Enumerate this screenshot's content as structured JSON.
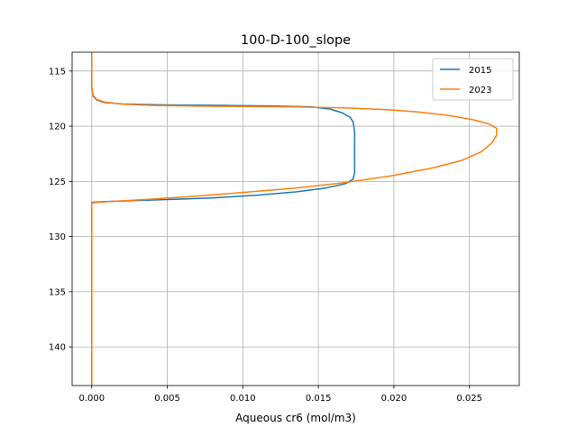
{
  "chart_data": {
    "type": "line",
    "title": "100-D-100_slope",
    "xlabel": "Aqueous cr6 (mol/m3)",
    "ylabel": "",
    "xlim": [
      -0.0013,
      0.0283
    ],
    "ylim": [
      143.5,
      113.3
    ],
    "y_inverted": true,
    "grid": true,
    "legend_position": "top-right",
    "x_ticks": [
      0.0,
      0.005,
      0.01,
      0.015,
      0.02,
      0.025
    ],
    "x_tick_labels": [
      "0.000",
      "0.005",
      "0.010",
      "0.015",
      "0.020",
      "0.025"
    ],
    "y_ticks": [
      115,
      120,
      125,
      130,
      135,
      140
    ],
    "y_tick_labels": [
      "115",
      "120",
      "125",
      "130",
      "135",
      "140"
    ],
    "series": [
      {
        "name": "2015",
        "color": "#1f77b4",
        "points": [
          [
            0.0,
            113.3
          ],
          [
            0.0,
            116.5
          ],
          [
            0.0001,
            117.3
          ],
          [
            0.0003,
            117.6
          ],
          [
            0.0008,
            117.85
          ],
          [
            0.002,
            117.98
          ],
          [
            0.005,
            118.07
          ],
          [
            0.009,
            118.12
          ],
          [
            0.012,
            118.17
          ],
          [
            0.0145,
            118.25
          ],
          [
            0.0158,
            118.45
          ],
          [
            0.0166,
            118.8
          ],
          [
            0.0171,
            119.2
          ],
          [
            0.0173,
            119.6
          ],
          [
            0.0174,
            120.5
          ],
          [
            0.0174,
            122.5
          ],
          [
            0.0174,
            124.2
          ],
          [
            0.0173,
            124.8
          ],
          [
            0.0168,
            125.2
          ],
          [
            0.0155,
            125.6
          ],
          [
            0.0135,
            125.95
          ],
          [
            0.011,
            126.25
          ],
          [
            0.008,
            126.5
          ],
          [
            0.005,
            126.65
          ],
          [
            0.002,
            126.78
          ],
          [
            0.0005,
            126.85
          ],
          [
            0.0,
            126.9
          ],
          [
            0.0,
            135.0
          ],
          [
            0.0,
            143.5
          ]
        ]
      },
      {
        "name": "2023",
        "color": "#ff7f0e",
        "points": [
          [
            0.0,
            113.3
          ],
          [
            0.0,
            116.5
          ],
          [
            0.0001,
            117.2
          ],
          [
            0.0003,
            117.55
          ],
          [
            0.0008,
            117.8
          ],
          [
            0.002,
            118.0
          ],
          [
            0.004,
            118.12
          ],
          [
            0.008,
            118.2
          ],
          [
            0.013,
            118.25
          ],
          [
            0.017,
            118.35
          ],
          [
            0.0195,
            118.5
          ],
          [
            0.0215,
            118.7
          ],
          [
            0.0235,
            119.0
          ],
          [
            0.0252,
            119.4
          ],
          [
            0.0263,
            119.8
          ],
          [
            0.0268,
            120.2
          ],
          [
            0.0268,
            120.8
          ],
          [
            0.0265,
            121.5
          ],
          [
            0.0258,
            122.3
          ],
          [
            0.0245,
            123.1
          ],
          [
            0.0225,
            123.8
          ],
          [
            0.0198,
            124.5
          ],
          [
            0.0168,
            125.1
          ],
          [
            0.0135,
            125.6
          ],
          [
            0.01,
            126.0
          ],
          [
            0.0068,
            126.35
          ],
          [
            0.004,
            126.6
          ],
          [
            0.0018,
            126.78
          ],
          [
            0.0005,
            126.88
          ],
          [
            0.0,
            126.95
          ],
          [
            0.0,
            135.0
          ],
          [
            0.0,
            143.5
          ]
        ]
      }
    ]
  }
}
